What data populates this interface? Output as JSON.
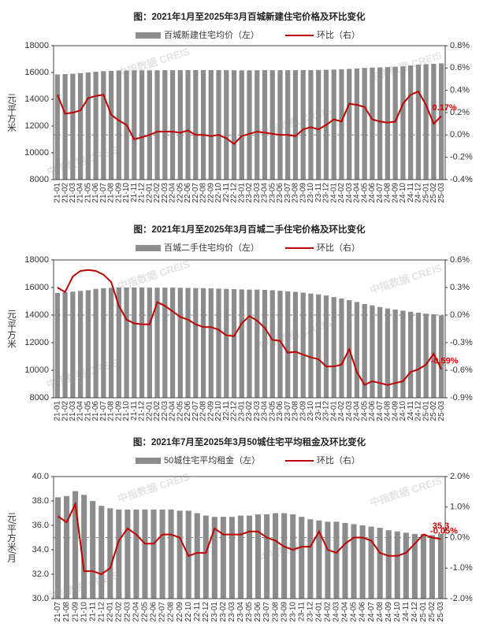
{
  "watermark": "中指数据 CREIS",
  "chart_data": [
    {
      "type": "bar-line",
      "title": "图：2021年1月至2025年3月百城新建住宅价格及环比变化",
      "y_label": "元/平方米",
      "categories": [
        "21-01",
        "21-02",
        "21-03",
        "21-04",
        "21-05",
        "21-06",
        "21-07",
        "21-08",
        "21-09",
        "21-10",
        "21-11",
        "21-12",
        "22-01",
        "22-02",
        "22-03",
        "22-04",
        "22-05",
        "22-06",
        "22-07",
        "22-08",
        "22-09",
        "22-10",
        "22-11",
        "22-12",
        "23-01",
        "23-02",
        "23-03",
        "23-04",
        "23-05",
        "23-06",
        "23-07",
        "23-08",
        "23-09",
        "23-10",
        "23-11",
        "23-12",
        "24-01",
        "24-02",
        "24-03",
        "24-04",
        "24-05",
        "24-06",
        "24-07",
        "24-08",
        "24-09",
        "24-10",
        "24-11",
        "24-12",
        "25-01",
        "25-02",
        "25-03"
      ],
      "ylim": [
        8000,
        18000
      ],
      "yticks": [
        8000,
        10000,
        12000,
        14000,
        16000,
        18000
      ],
      "y2lim": [
        -0.4,
        0.8
      ],
      "y2ticks": [
        {
          "value": -0.4,
          "label": "-0.4%"
        },
        {
          "value": -0.2,
          "label": "-0.2%"
        },
        {
          "value": 0,
          "label": "0.0%"
        },
        {
          "value": 0.2,
          "label": "0.2%"
        },
        {
          "value": 0.4,
          "label": "0.4%"
        },
        {
          "value": 0.6,
          "label": "0.6%"
        },
        {
          "value": 0.8,
          "label": "0.8%"
        }
      ],
      "series": [
        {
          "name": "百城新建住宅均价（左）",
          "type": "bar",
          "color": "#8c8c8c",
          "values": [
            15850,
            15880,
            15910,
            15950,
            16000,
            16050,
            16100,
            16120,
            16140,
            16150,
            16160,
            16160,
            16160,
            16165,
            16170,
            16170,
            16170,
            16175,
            16175,
            16175,
            16175,
            16175,
            16170,
            16160,
            16160,
            16160,
            16165,
            16170,
            16170,
            16170,
            16170,
            16170,
            16175,
            16180,
            16190,
            16200,
            16220,
            16240,
            16270,
            16300,
            16340,
            16360,
            16380,
            16400,
            16420,
            16460,
            16520,
            16580,
            16620,
            16650,
            16680
          ]
        },
        {
          "name": "环比（右）",
          "type": "line",
          "axis": "y2",
          "color": "#c00000",
          "values": [
            0.36,
            0.19,
            0.2,
            0.22,
            0.33,
            0.35,
            0.36,
            0.18,
            0.13,
            0.09,
            -0.04,
            -0.02,
            0,
            0.03,
            0.03,
            0.03,
            0.02,
            0.04,
            0,
            0,
            -0.01,
            0,
            -0.03,
            -0.08,
            -0.01,
            0.01,
            0.03,
            0.02,
            0.01,
            0,
            0,
            -0.01,
            0.05,
            0.07,
            0.05,
            0.09,
            0.14,
            0.12,
            0.28,
            0.27,
            0.25,
            0.14,
            0.12,
            0.11,
            0.12,
            0.28,
            0.36,
            0.39,
            0.27,
            0.1,
            0.17
          ],
          "value_labels": {
            "50": "0.17%"
          }
        }
      ]
    },
    {
      "type": "bar-line",
      "title": "图：2021年1月至2025年3月百城二手住宅价格及环比变化",
      "y_label": "元/平方米",
      "categories": [
        "21-01",
        "21-02",
        "21-03",
        "21-04",
        "21-05",
        "21-06",
        "21-07",
        "21-08",
        "21-09",
        "21-10",
        "21-11",
        "21-12",
        "22-01",
        "22-02",
        "22-03",
        "22-04",
        "22-05",
        "22-06",
        "22-07",
        "22-08",
        "22-09",
        "22-10",
        "22-11",
        "22-12",
        "23-01",
        "23-02",
        "23-03",
        "23-04",
        "23-05",
        "23-06",
        "23-07",
        "23-08",
        "23-09",
        "23-10",
        "23-11",
        "23-12",
        "24-01",
        "24-02",
        "24-03",
        "24-04",
        "24-05",
        "24-06",
        "24-07",
        "24-08",
        "24-09",
        "24-10",
        "24-11",
        "24-12",
        "25-01",
        "25-02",
        "25-03"
      ],
      "ylim": [
        8000,
        18000
      ],
      "yticks": [
        8000,
        10000,
        12000,
        14000,
        16000,
        18000
      ],
      "y2lim": [
        -0.9,
        0.6
      ],
      "y2ticks": [
        {
          "value": -0.9,
          "label": "-0.9%"
        },
        {
          "value": -0.6,
          "label": "-0.6%"
        },
        {
          "value": -0.3,
          "label": "-0.3%"
        },
        {
          "value": 0,
          "label": "0.0%"
        },
        {
          "value": 0.3,
          "label": "0.3%"
        },
        {
          "value": 0.6,
          "label": "0.6%"
        }
      ],
      "series": [
        {
          "name": "百城二手住宅均价（左）",
          "type": "bar",
          "color": "#8c8c8c",
          "values": [
            15600,
            15650,
            15700,
            15750,
            15800,
            15900,
            15950,
            15980,
            16000,
            16000,
            16000,
            16000,
            15990,
            15990,
            15990,
            15990,
            15980,
            15970,
            15960,
            15950,
            15940,
            15920,
            15900,
            15880,
            15860,
            15850,
            15850,
            15830,
            15800,
            15760,
            15720,
            15680,
            15630,
            15560,
            15500,
            15420,
            15300,
            15200,
            15080,
            14950,
            14800,
            14700,
            14580,
            14480,
            14400,
            14320,
            14240,
            14170,
            14100,
            14060,
            13980
          ]
        },
        {
          "name": "环比（右）",
          "type": "line",
          "axis": "y2",
          "color": "#c00000",
          "values": [
            0.3,
            0.25,
            0.42,
            0.48,
            0.49,
            0.48,
            0.44,
            0.36,
            0.1,
            -0.05,
            -0.09,
            -0.1,
            -0.1,
            0.14,
            0.1,
            0.04,
            -0.02,
            -0.05,
            -0.1,
            -0.13,
            -0.13,
            -0.16,
            -0.22,
            -0.23,
            -0.09,
            -0.01,
            -0.06,
            -0.14,
            -0.27,
            -0.28,
            -0.41,
            -0.4,
            -0.43,
            -0.46,
            -0.48,
            -0.56,
            -0.56,
            -0.54,
            -0.37,
            -0.62,
            -0.76,
            -0.72,
            -0.74,
            -0.76,
            -0.74,
            -0.72,
            -0.62,
            -0.59,
            -0.54,
            -0.42,
            -0.59
          ],
          "value_labels": {
            "50": "-0.59%"
          }
        }
      ]
    },
    {
      "type": "bar-line",
      "title": "图：2021年7月至2025年3月50城住宅平均租金及环比变化",
      "y_label": "元/平方米/月",
      "categories": [
        "21-07",
        "21-08",
        "21-09",
        "21-10",
        "21-11",
        "21-12",
        "22-01",
        "22-02",
        "22-03",
        "22-04",
        "22-05",
        "22-06",
        "22-07",
        "22-08",
        "22-09",
        "22-10",
        "22-11",
        "22-12",
        "23-01",
        "23-02",
        "23-03",
        "23-04",
        "23-05",
        "23-06",
        "23-07",
        "23-08",
        "23-09",
        "23-10",
        "23-11",
        "23-12",
        "24-01",
        "24-02",
        "24-03",
        "24-04",
        "24-05",
        "24-06",
        "24-07",
        "24-08",
        "24-09",
        "24-10",
        "24-11",
        "24-12",
        "25-01",
        "25-02",
        "25-03"
      ],
      "ylim": [
        30,
        40
      ],
      "yticks": [
        {
          "value": 30,
          "label": "30.0"
        },
        {
          "value": 32,
          "label": "32.0"
        },
        {
          "value": 34,
          "label": "34.0"
        },
        {
          "value": 36,
          "label": "36.0"
        },
        {
          "value": 38,
          "label": "38.0"
        },
        {
          "value": 40,
          "label": "40.0"
        }
      ],
      "y2lim": [
        -2,
        2
      ],
      "y2ticks": [
        {
          "value": -2,
          "label": "-2.0%"
        },
        {
          "value": -1,
          "label": "-1.0%"
        },
        {
          "value": 0,
          "label": "0.0%"
        },
        {
          "value": 1,
          "label": "1.0%"
        },
        {
          "value": 2,
          "label": "2.0%"
        }
      ],
      "series": [
        {
          "name": "50城住宅平均租金（左）",
          "type": "bar",
          "color": "#8c8c8c",
          "values": [
            38.3,
            38.4,
            38.8,
            38.5,
            38,
            37.6,
            37.4,
            37.3,
            37.3,
            37.3,
            37.3,
            37.3,
            37.3,
            37.3,
            37.2,
            37.2,
            37,
            36.8,
            36.7,
            36.7,
            36.7,
            36.8,
            36.8,
            36.9,
            36.9,
            37,
            37,
            36.9,
            36.7,
            36.5,
            36.4,
            36.3,
            36.3,
            36.2,
            36.1,
            36,
            35.9,
            35.8,
            35.6,
            35.5,
            35.4,
            35.3,
            35.3,
            35.2,
            35.3
          ],
          "labeled": [
            44
          ]
        },
        {
          "name": "环比（右）",
          "type": "line",
          "axis": "y2",
          "color": "#c00000",
          "values": [
            0.7,
            0.5,
            1.1,
            -1.1,
            -1.1,
            -1.2,
            -1,
            -0.1,
            0.3,
            0.1,
            -0.2,
            -0.2,
            0.1,
            0.1,
            0,
            -0.6,
            -0.5,
            -0.5,
            0.3,
            0.1,
            0.1,
            0.1,
            0.2,
            0.2,
            0,
            -0.1,
            -0.3,
            -0.4,
            -0.3,
            -0.3,
            0.2,
            -0.4,
            -0.5,
            -0.2,
            0,
            0,
            -0.1,
            -0.5,
            -0.6,
            -0.6,
            -0.5,
            -0.2,
            0.1,
            0,
            -0.05
          ],
          "value_labels": {
            "44": "-0.05%"
          }
        }
      ]
    }
  ]
}
